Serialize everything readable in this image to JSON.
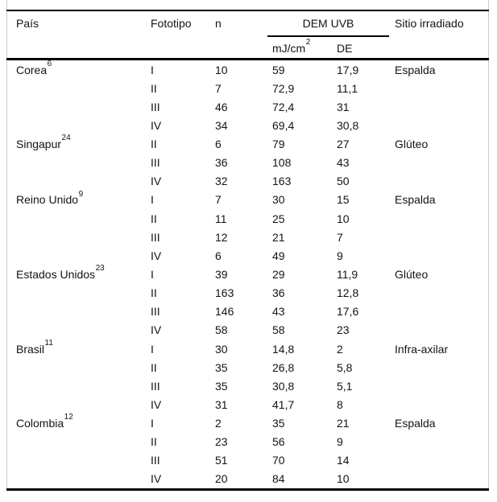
{
  "colors": {
    "background": "#ffffff",
    "text": "#141414",
    "rule": "#000000",
    "frame": "#cccccc"
  },
  "table": {
    "header": {
      "pais": "País",
      "fototipo": "Fototipo",
      "n": "n",
      "dem_uvb": "DEM UVB",
      "mj_base": "mJ/cm",
      "mj_sup": "2",
      "de": "DE",
      "sitio": "Sitio irradiado"
    },
    "rows": [
      {
        "pais": "Corea",
        "ref": "6",
        "fototipo": "I",
        "n": "10",
        "dem": "59",
        "de": "17,9",
        "sitio": "Espalda"
      },
      {
        "pais": "",
        "ref": "",
        "fototipo": "II",
        "n": "7",
        "dem": "72,9",
        "de": "11,1",
        "sitio": ""
      },
      {
        "pais": "",
        "ref": "",
        "fototipo": "III",
        "n": "46",
        "dem": "72,4",
        "de": "31",
        "sitio": ""
      },
      {
        "pais": "",
        "ref": "",
        "fototipo": "IV",
        "n": "34",
        "dem": "69,4",
        "de": "30,8",
        "sitio": ""
      },
      {
        "pais": "Singapur",
        "ref": "24",
        "fototipo": "II",
        "n": "6",
        "dem": "79",
        "de": "27",
        "sitio": "Glúteo"
      },
      {
        "pais": "",
        "ref": "",
        "fototipo": "III",
        "n": "36",
        "dem": "108",
        "de": "43",
        "sitio": ""
      },
      {
        "pais": "",
        "ref": "",
        "fototipo": "IV",
        "n": "32",
        "dem": "163",
        "de": "50",
        "sitio": ""
      },
      {
        "pais": "Reino Unido",
        "ref": "9",
        "fototipo": "I",
        "n": "7",
        "dem": "30",
        "de": "15",
        "sitio": "Espalda"
      },
      {
        "pais": "",
        "ref": "",
        "fototipo": "II",
        "n": "11",
        "dem": "25",
        "de": "10",
        "sitio": ""
      },
      {
        "pais": "",
        "ref": "",
        "fototipo": "III",
        "n": "12",
        "dem": "21",
        "de": "7",
        "sitio": ""
      },
      {
        "pais": "",
        "ref": "",
        "fototipo": "IV",
        "n": "6",
        "dem": "49",
        "de": "9",
        "sitio": ""
      },
      {
        "pais": "Estados Unidos",
        "ref": "23",
        "fototipo": "I",
        "n": "39",
        "dem": "29",
        "de": "11,9",
        "sitio": "Glúteo"
      },
      {
        "pais": "",
        "ref": "",
        "fototipo": "II",
        "n": "163",
        "dem": "36",
        "de": "12,8",
        "sitio": ""
      },
      {
        "pais": "",
        "ref": "",
        "fototipo": "III",
        "n": "146",
        "dem": "43",
        "de": "17,6",
        "sitio": ""
      },
      {
        "pais": "",
        "ref": "",
        "fototipo": "IV",
        "n": "58",
        "dem": "58",
        "de": "23",
        "sitio": ""
      },
      {
        "pais": "Brasil",
        "ref": "11",
        "fototipo": "I",
        "n": "30",
        "dem": "14,8",
        "de": "2",
        "sitio": "Infra-axilar"
      },
      {
        "pais": "",
        "ref": "",
        "fototipo": "II",
        "n": "35",
        "dem": "26,8",
        "de": "5,8",
        "sitio": ""
      },
      {
        "pais": "",
        "ref": "",
        "fototipo": "III",
        "n": "35",
        "dem": "30,8",
        "de": "5,1",
        "sitio": ""
      },
      {
        "pais": "",
        "ref": "",
        "fototipo": "IV",
        "n": "31",
        "dem": "41,7",
        "de": "8",
        "sitio": ""
      },
      {
        "pais": "Colombia",
        "ref": "12",
        "fototipo": "I",
        "n": "2",
        "dem": "35",
        "de": "21",
        "sitio": "Espalda"
      },
      {
        "pais": "",
        "ref": "",
        "fototipo": "II",
        "n": "23",
        "dem": "56",
        "de": "9",
        "sitio": ""
      },
      {
        "pais": "",
        "ref": "",
        "fototipo": "III",
        "n": "51",
        "dem": "70",
        "de": "14",
        "sitio": ""
      },
      {
        "pais": "",
        "ref": "",
        "fototipo": "IV",
        "n": "20",
        "dem": "84",
        "de": "10",
        "sitio": ""
      }
    ]
  }
}
